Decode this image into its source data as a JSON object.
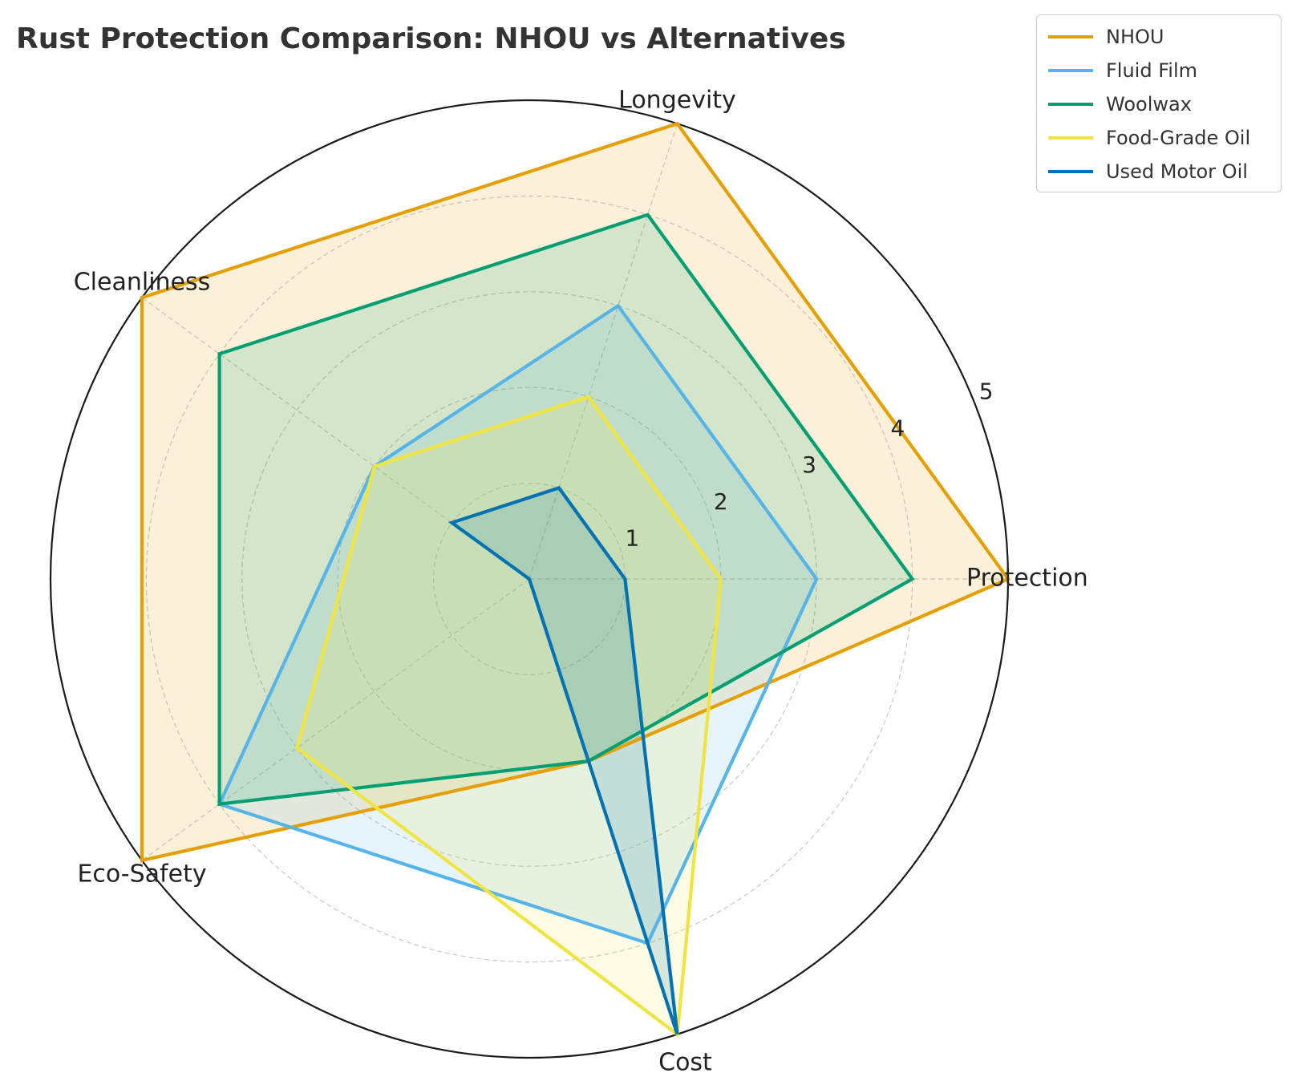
{
  "chart_data": {
    "type": "radar",
    "title": "Rust Protection Comparison: NHOU vs Alternatives",
    "categories": [
      "Protection",
      "Longevity",
      "Cleanliness",
      "Eco-Safety",
      "Cost"
    ],
    "rlim": [
      0,
      5
    ],
    "rticks": [
      "1",
      "2",
      "3",
      "4",
      "5"
    ],
    "grid": true,
    "legend_position": "top-right",
    "series": [
      {
        "name": "NHOU",
        "values": [
          5,
          5,
          5,
          5,
          2
        ],
        "color": "#E69F00"
      },
      {
        "name": "Fluid Film",
        "values": [
          3,
          3,
          2,
          4,
          4
        ],
        "color": "#56B4E9"
      },
      {
        "name": "Woolwax",
        "values": [
          4,
          4,
          4,
          4,
          2
        ],
        "color": "#009E73"
      },
      {
        "name": "Food-Grade Oil",
        "values": [
          2,
          2,
          2,
          3,
          5
        ],
        "color": "#F0E442"
      },
      {
        "name": "Used Motor Oil",
        "values": [
          1,
          1,
          1,
          0,
          5
        ],
        "color": "#0072B2"
      }
    ]
  }
}
